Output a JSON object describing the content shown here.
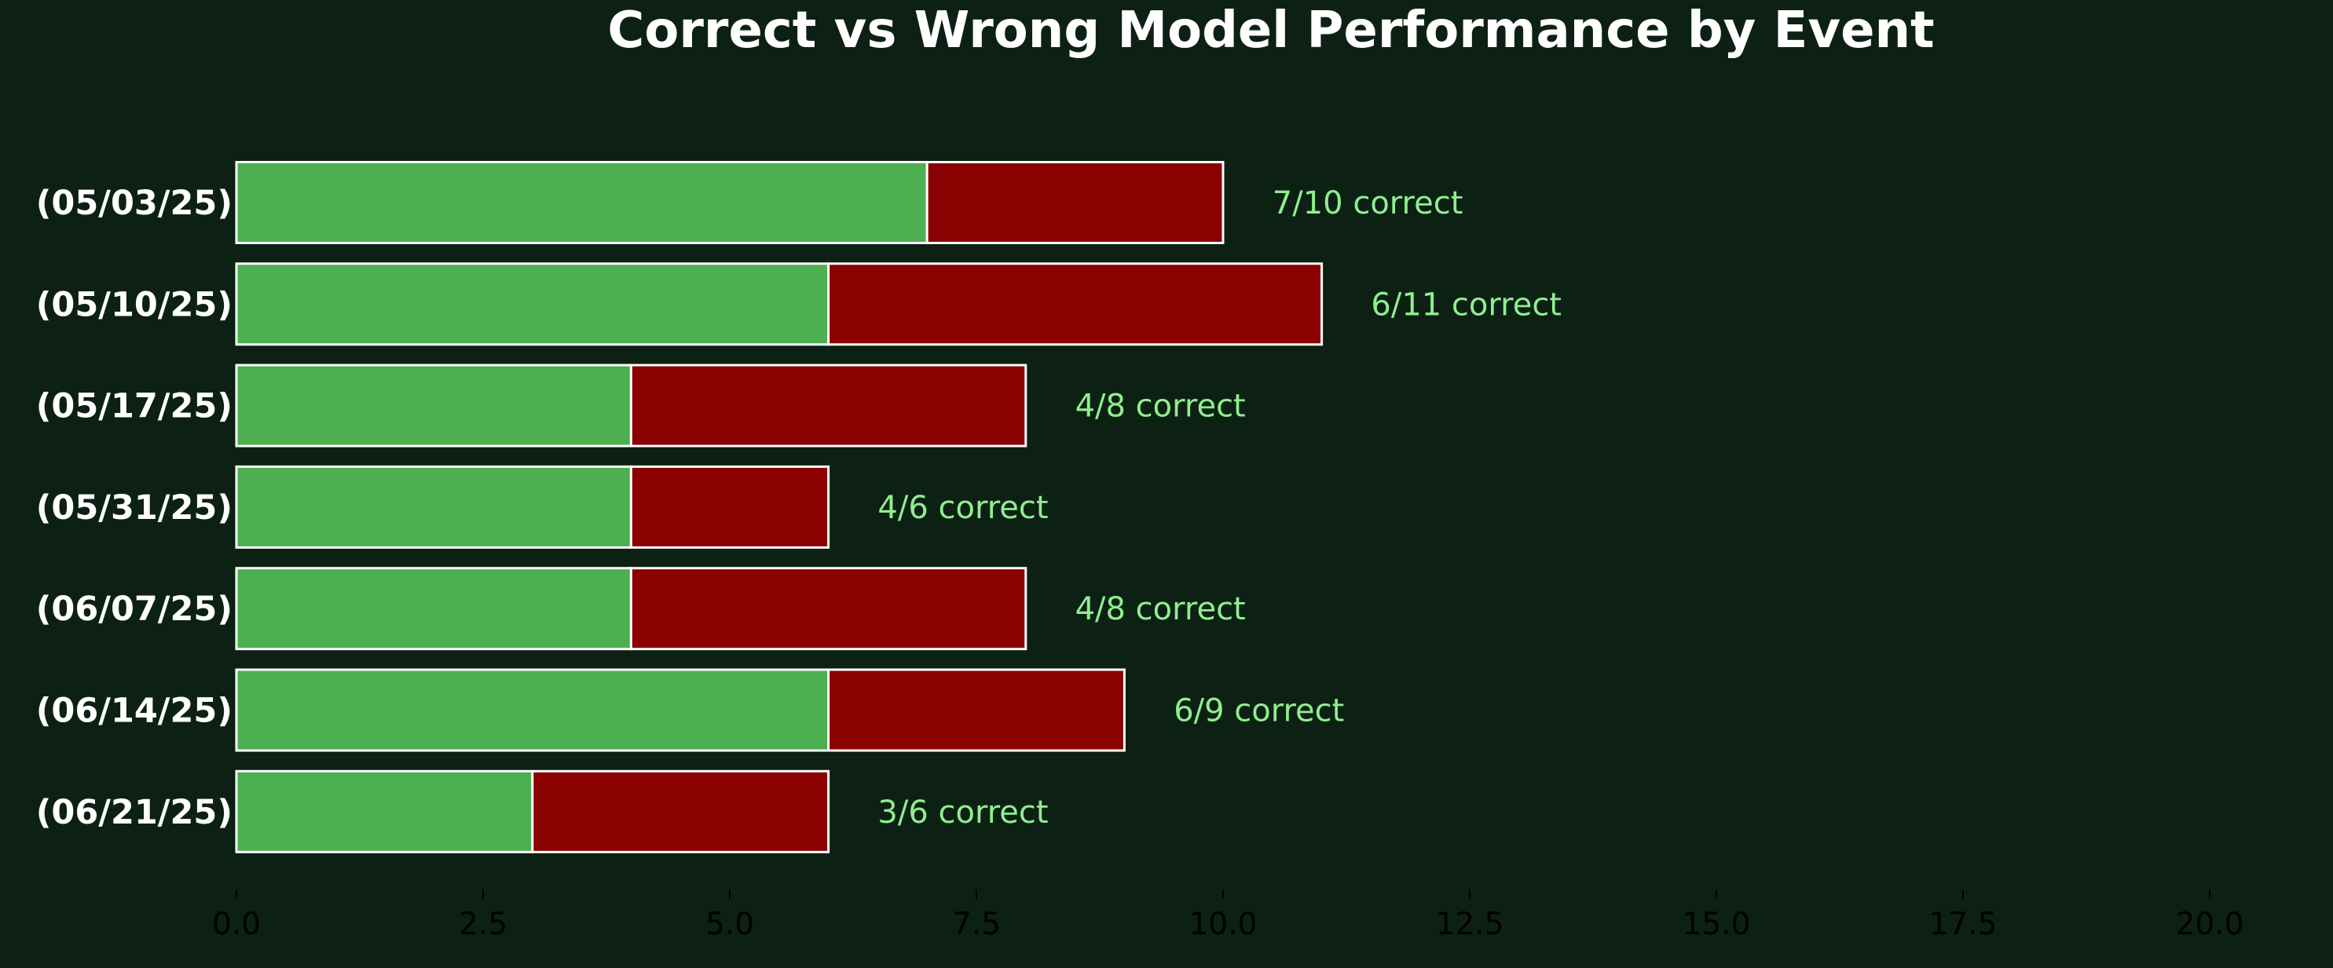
{
  "chart_data": {
    "type": "bar",
    "orientation": "horizontal",
    "stacked": true,
    "title": "Correct vs Wrong Model Performance by Event",
    "xlabel": "",
    "ylabel": "",
    "xlim": [
      0,
      21
    ],
    "x_ticks": [
      "0.0",
      "2.5",
      "5.0",
      "7.5",
      "10.0",
      "12.5",
      "15.0",
      "17.5",
      "20.0"
    ],
    "x_tick_values": [
      0,
      2.5,
      5,
      7.5,
      10,
      12.5,
      15,
      17.5,
      20
    ],
    "grid": false,
    "categories": [
      "(05/03/25)",
      "(05/10/25)",
      "(05/17/25)",
      "(05/31/25)",
      "(06/07/25)",
      "(06/14/25)",
      "(06/21/25)"
    ],
    "series": [
      {
        "values": [
          7,
          6,
          4,
          4,
          4,
          6,
          3
        ],
        "color": "#4caf50"
      },
      {
        "values": [
          3,
          5,
          4,
          2,
          4,
          3,
          3
        ],
        "color": "#8b0000"
      }
    ],
    "annotations": [
      "7/10 correct",
      "6/11 correct",
      "4/8 correct",
      "4/6 correct",
      "4/8 correct",
      "6/9 correct",
      "3/6 correct"
    ]
  },
  "colors": {
    "background": "#0c2114",
    "title": "#ffffff",
    "category_label": "#ffffff",
    "tick_label": "#000000",
    "annotation": "#90ee90",
    "bar_edge": "#ffffff",
    "axis": "#000000"
  }
}
